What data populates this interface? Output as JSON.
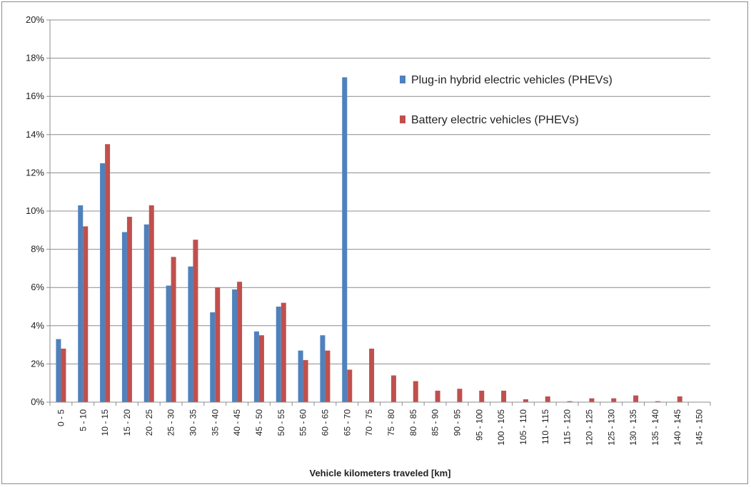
{
  "chart_data": {
    "type": "bar",
    "title": "",
    "xlabel": "Vehicle kilometers traveled [km]",
    "ylabel": "",
    "ylim": [
      0,
      20
    ],
    "yticks": [
      "0%",
      "2%",
      "4%",
      "6%",
      "8%",
      "10%",
      "12%",
      "14%",
      "16%",
      "18%",
      "20%"
    ],
    "grid": true,
    "legend_position": "top-right",
    "categories": [
      "0 - 5",
      "5 - 10",
      "10 - 15",
      "15 - 20",
      "20 - 25",
      "25 - 30",
      "30 - 35",
      "35 - 40",
      "40 - 45",
      "45 - 50",
      "50 - 55",
      "55 - 60",
      "60 - 65",
      "65 - 70",
      "70 - 75",
      "75 - 80",
      "80 - 85",
      "85 - 90",
      "90 - 95",
      "95 - 100",
      "100 - 105",
      "105 - 110",
      "110 - 115",
      "115 - 120",
      "120 - 125",
      "125 - 130",
      "130 - 135",
      "135 - 140",
      "140 - 145",
      "145 - 150"
    ],
    "series": [
      {
        "name": "Plug-in hybrid electric vehicles (PHEVs)",
        "color": "#4f81bd",
        "values": [
          3.3,
          10.3,
          12.5,
          8.9,
          9.3,
          6.1,
          7.1,
          4.7,
          5.9,
          3.7,
          5.0,
          2.7,
          3.5,
          17.0,
          0,
          0,
          0,
          0,
          0,
          0,
          0,
          0,
          0,
          0,
          0,
          0,
          0,
          0,
          0,
          0
        ]
      },
      {
        "name": "Battery electric vehicles (PHEVs)",
        "color": "#c0504d",
        "values": [
          2.8,
          9.2,
          13.5,
          9.7,
          10.3,
          7.6,
          8.5,
          6.0,
          6.3,
          3.5,
          5.2,
          2.2,
          2.7,
          1.7,
          2.8,
          1.4,
          1.1,
          0.6,
          0.7,
          0.6,
          0.6,
          0.15,
          0.3,
          0.05,
          0.2,
          0.2,
          0.35,
          0.05,
          0.3,
          0
        ]
      }
    ]
  }
}
